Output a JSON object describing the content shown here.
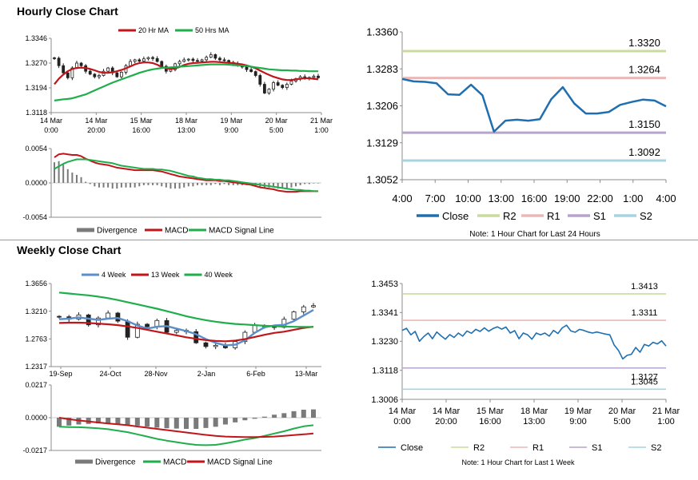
{
  "sections": {
    "hourly": {
      "title": "Hourly Close Chart"
    },
    "weekly": {
      "title": "Weekly Close Chart"
    }
  },
  "colors": {
    "ma_red": "#c0161b",
    "ma_green": "#1fae4b",
    "ma_blue": "#5b8fc9",
    "close_blue": "#1f6fb0",
    "divergence": "#7a7a7a",
    "r2": "#c9dc9c",
    "r1": "#eab8b6",
    "s1": "#b7a4cc",
    "s2": "#a6d4e0",
    "axis": "#8c8c8c",
    "grid": "#d9d9d9"
  },
  "chart_data": [
    {
      "id": "hourly_price",
      "type": "candlestick",
      "legend": [
        "20 Hr MA",
        "50 Hrs MA"
      ],
      "ylim": [
        1.3118,
        1.3346
      ],
      "yticks": [
        "1.3346",
        "1.3270",
        "1.3194",
        "1.3118"
      ],
      "ytick_values": [
        1.3346,
        1.327,
        1.3194,
        1.3118
      ],
      "xticks": [
        [
          "14 Mar",
          "0:00"
        ],
        [
          "14 Mar",
          "20:00"
        ],
        [
          "15 Mar",
          "16:00"
        ],
        [
          "18 Mar",
          "13:00"
        ],
        [
          "19 Mar",
          "9:00"
        ],
        [
          "20 Mar",
          "5:00"
        ],
        [
          "21 Mar",
          "1:00"
        ]
      ],
      "n": 60,
      "close": [
        1.3285,
        1.3262,
        1.324,
        1.3225,
        1.3255,
        1.327,
        1.3262,
        1.3245,
        1.3236,
        1.3228,
        1.3232,
        1.3245,
        1.3255,
        1.324,
        1.3228,
        1.3242,
        1.3262,
        1.3275,
        1.328,
        1.3276,
        1.3283,
        1.3287,
        1.3284,
        1.3275,
        1.326,
        1.3245,
        1.325,
        1.3268,
        1.3275,
        1.328,
        1.3282,
        1.3278,
        1.3276,
        1.328,
        1.3288,
        1.3296,
        1.3285,
        1.328,
        1.3278,
        1.3272,
        1.3268,
        1.3262,
        1.3258,
        1.325,
        1.3244,
        1.3232,
        1.3205,
        1.3178,
        1.319,
        1.321,
        1.3202,
        1.3195,
        1.3205,
        1.3215,
        1.3222,
        1.3228,
        1.3222,
        1.3226,
        1.323,
        1.3225
      ],
      "ma20": [
        1.3205,
        1.3222,
        1.3235,
        1.3245,
        1.3252,
        1.3255,
        1.3256,
        1.3255,
        1.3252,
        1.3248,
        1.3243,
        1.324,
        1.324,
        1.3242,
        1.3245,
        1.3249,
        1.3254,
        1.326,
        1.3266,
        1.327,
        1.3272,
        1.3272,
        1.327,
        1.3265,
        1.3258,
        1.3254,
        1.3252,
        1.3254,
        1.3258,
        1.3264,
        1.3268,
        1.327,
        1.3271,
        1.3272,
        1.3273,
        1.3274,
        1.3274,
        1.3273,
        1.3272,
        1.3271,
        1.327,
        1.3268,
        1.3266,
        1.3263,
        1.3259,
        1.3254,
        1.3247,
        1.324,
        1.3234,
        1.3228,
        1.3224,
        1.322,
        1.3218,
        1.3218,
        1.322,
        1.3222,
        1.3224,
        1.3223,
        1.3222,
        1.322
      ],
      "ma50": [
        1.3155,
        1.3157,
        1.3159,
        1.316,
        1.3162,
        1.3166,
        1.317,
        1.3174,
        1.318,
        1.3186,
        1.3192,
        1.3198,
        1.3204,
        1.321,
        1.3215,
        1.322,
        1.3225,
        1.323,
        1.3235,
        1.324,
        1.3244,
        1.3248,
        1.3251,
        1.3253,
        1.3255,
        1.3256,
        1.3257,
        1.3258,
        1.3259,
        1.326,
        1.3261,
        1.3262,
        1.3263,
        1.3264,
        1.3265,
        1.3266,
        1.3266,
        1.3266,
        1.3266,
        1.3265,
        1.3264,
        1.3263,
        1.3262,
        1.3261,
        1.3259,
        1.3257,
        1.3255,
        1.3253,
        1.3251,
        1.325,
        1.3249,
        1.3248,
        1.3248,
        1.3247,
        1.3247,
        1.3246,
        1.3246,
        1.3245,
        1.3245,
        1.3245
      ]
    },
    {
      "id": "hourly_macd",
      "type": "macd",
      "legend": [
        "Divergence",
        "MACD",
        "MACD Signal Line"
      ],
      "ylim": [
        -0.0054,
        0.0054
      ],
      "yticks": [
        "0.0054",
        "0.0000",
        "-0.0054"
      ],
      "ytick_values": [
        0.0054,
        0.0,
        -0.0054
      ],
      "macd": [
        0.004,
        0.0045,
        0.0046,
        0.0045,
        0.0044,
        0.0044,
        0.0042,
        0.0038,
        0.0035,
        0.0032,
        0.003,
        0.0029,
        0.0028,
        0.0026,
        0.0024,
        0.0023,
        0.0022,
        0.0021,
        0.002,
        0.002,
        0.002,
        0.002,
        0.002,
        0.0019,
        0.0018,
        0.0016,
        0.0014,
        0.0012,
        0.001,
        0.0009,
        0.0008,
        0.0007,
        0.0006,
        0.0005,
        0.0004,
        0.0004,
        0.0004,
        0.0003,
        0.0003,
        0.0002,
        0.0001,
        0.0,
        -0.0001,
        -0.0002,
        -0.0003,
        -0.0005,
        -0.0007,
        -0.0008,
        -0.0009,
        -0.001,
        -0.0012,
        -0.0013,
        -0.0014,
        -0.0014,
        -0.0014,
        -0.0013,
        -0.0013,
        -0.0013,
        -0.0013,
        -0.0013
      ],
      "signal": [
        0.0022,
        0.0026,
        0.003,
        0.0033,
        0.0035,
        0.0037,
        0.0037,
        0.0037,
        0.0036,
        0.0035,
        0.0034,
        0.0033,
        0.0032,
        0.0031,
        0.0029,
        0.0027,
        0.0026,
        0.0025,
        0.0024,
        0.0023,
        0.0022,
        0.0022,
        0.0022,
        0.0021,
        0.0021,
        0.002,
        0.0019,
        0.0017,
        0.0015,
        0.0013,
        0.0011,
        0.001,
        0.0008,
        0.0007,
        0.0006,
        0.0006,
        0.0005,
        0.0005,
        0.0004,
        0.0004,
        0.0003,
        0.0002,
        0.0001,
        0.0,
        -0.0001,
        -0.0002,
        -0.0003,
        -0.0004,
        -0.0005,
        -0.0006,
        -0.0007,
        -0.0008,
        -0.0009,
        -0.001,
        -0.0011,
        -0.0011,
        -0.0012,
        -0.0012,
        -0.0013,
        -0.0013
      ]
    },
    {
      "id": "hourly_close_24h",
      "type": "line",
      "legend": [
        "Close",
        "R2",
        "R1",
        "S1",
        "S2"
      ],
      "note": "Note: 1 Hour Chart for Last 24 Hours",
      "ylim": [
        1.3052,
        1.336
      ],
      "yticks": [
        "1.3360",
        "1.3283",
        "1.3206",
        "1.3129",
        "1.3052"
      ],
      "ytick_values": [
        1.336,
        1.3283,
        1.3206,
        1.3129,
        1.3052
      ],
      "xticks": [
        "4:00",
        "7:00",
        "10:00",
        "13:00",
        "16:00",
        "19:00",
        "22:00",
        "1:00",
        "4:00"
      ],
      "close": [
        1.3262,
        1.3257,
        1.3256,
        1.3253,
        1.323,
        1.3229,
        1.325,
        1.3228,
        1.3152,
        1.3175,
        1.3177,
        1.3175,
        1.3178,
        1.322,
        1.3245,
        1.3211,
        1.319,
        1.319,
        1.3193,
        1.3208,
        1.3214,
        1.3219,
        1.3217,
        1.3205
      ],
      "levels": [
        {
          "name": "R2",
          "value": 1.332,
          "label": "1.3320"
        },
        {
          "name": "R1",
          "value": 1.3264,
          "label": "1.3264"
        },
        {
          "name": "S1",
          "value": 1.315,
          "label": "1.3150"
        },
        {
          "name": "S2",
          "value": 1.3092,
          "label": "1.3092"
        }
      ]
    },
    {
      "id": "weekly_price",
      "type": "candlestick",
      "legend": [
        "4 Week",
        "13 Week",
        "40 Week"
      ],
      "ylim": [
        1.2317,
        1.3656
      ],
      "yticks": [
        "1.3656",
        "1.3210",
        "1.2763",
        "1.2317"
      ],
      "ytick_values": [
        1.3656,
        1.321,
        1.2763,
        1.2317
      ],
      "xticks": [
        "19-Sep",
        "24-Oct",
        "28-Nov",
        "2-Jan",
        "6-Feb",
        "13-Mar"
      ],
      "n": 27,
      "close": [
        1.312,
        1.308,
        1.315,
        1.299,
        1.31,
        1.318,
        1.305,
        1.279,
        1.3,
        1.296,
        1.306,
        1.287,
        1.29,
        1.288,
        1.27,
        1.264,
        1.266,
        1.262,
        1.272,
        1.287,
        1.298,
        1.296,
        1.295,
        1.308,
        1.32,
        1.328,
        1.33
      ],
      "ma4": [
        1.308,
        1.309,
        1.311,
        1.309,
        1.307,
        1.309,
        1.31,
        1.305,
        1.298,
        1.293,
        1.296,
        1.297,
        1.293,
        1.289,
        1.284,
        1.276,
        1.27,
        1.266,
        1.267,
        1.274,
        1.286,
        1.295,
        1.298,
        1.299,
        1.305,
        1.314,
        1.323
      ],
      "ma13": [
        1.302,
        1.3025,
        1.3025,
        1.302,
        1.301,
        1.3,
        1.2985,
        1.2965,
        1.294,
        1.291,
        1.288,
        1.285,
        1.282,
        1.279,
        1.2765,
        1.2745,
        1.273,
        1.2725,
        1.2735,
        1.276,
        1.2795,
        1.283,
        1.286,
        1.288,
        1.291,
        1.294,
        1.296
      ],
      "ma40": [
        1.351,
        1.3495,
        1.348,
        1.3465,
        1.3445,
        1.342,
        1.339,
        1.3355,
        1.332,
        1.3285,
        1.325,
        1.321,
        1.317,
        1.313,
        1.3095,
        1.3065,
        1.304,
        1.302,
        1.3005,
        1.2995,
        1.2985,
        1.2975,
        1.2968,
        1.2962,
        1.2958,
        1.2955,
        1.2955
      ]
    },
    {
      "id": "weekly_macd",
      "type": "macd",
      "legend": [
        "Divergence",
        "MACD",
        "MACD Signal Line"
      ],
      "ylim": [
        -0.0217,
        0.0217
      ],
      "yticks": [
        "0.0217",
        "0.0000",
        "-0.0217"
      ],
      "ytick_values": [
        0.0217,
        0.0,
        -0.0217
      ],
      "macd": [
        -0.006,
        -0.0062,
        -0.0063,
        -0.0066,
        -0.007,
        -0.0076,
        -0.0086,
        -0.0096,
        -0.011,
        -0.0125,
        -0.014,
        -0.0152,
        -0.0162,
        -0.0172,
        -0.018,
        -0.0182,
        -0.018,
        -0.017,
        -0.0158,
        -0.0145,
        -0.0135,
        -0.012,
        -0.0105,
        -0.009,
        -0.0072,
        -0.0057,
        -0.005
      ],
      "signal": [
        0.0,
        -0.001,
        -0.0018,
        -0.0025,
        -0.0032,
        -0.0038,
        -0.0044,
        -0.005,
        -0.0058,
        -0.0066,
        -0.0074,
        -0.0082,
        -0.009,
        -0.0098,
        -0.0106,
        -0.0114,
        -0.012,
        -0.0125,
        -0.0127,
        -0.0128,
        -0.0128,
        -0.0127,
        -0.0125,
        -0.012,
        -0.0115,
        -0.011,
        -0.0105
      ]
    },
    {
      "id": "weekly_close",
      "type": "line",
      "legend": [
        "Close",
        "R2",
        "R1",
        "S1",
        "S2"
      ],
      "note": "Note: 1 Hour Chart for Last 1 Week",
      "ylim": [
        1.3006,
        1.3453
      ],
      "yticks": [
        "1.3453",
        "1.3341",
        "1.3230",
        "1.3118",
        "1.3006"
      ],
      "ytick_values": [
        1.3453,
        1.3341,
        1.323,
        1.3118,
        1.3006
      ],
      "xticks": [
        [
          "14 Mar",
          "0:00"
        ],
        [
          "14 Mar",
          "20:00"
        ],
        [
          "15 Mar",
          "16:00"
        ],
        [
          "18 Mar",
          "13:00"
        ],
        [
          "19 Mar",
          "9:00"
        ],
        [
          "20 Mar",
          "5:00"
        ],
        [
          "21 Mar",
          "1:00"
        ]
      ],
      "close": [
        1.3272,
        1.328,
        1.3255,
        1.3268,
        1.323,
        1.3248,
        1.3262,
        1.324,
        1.3266,
        1.3251,
        1.3238,
        1.3256,
        1.3245,
        1.3262,
        1.325,
        1.327,
        1.3261,
        1.3276,
        1.3268,
        1.3282,
        1.3269,
        1.3279,
        1.3286,
        1.3277,
        1.3285,
        1.3262,
        1.3271,
        1.324,
        1.3262,
        1.3255,
        1.3238,
        1.3262,
        1.3255,
        1.3262,
        1.325,
        1.3272,
        1.326,
        1.3282,
        1.3292,
        1.327,
        1.3265,
        1.3276,
        1.3272,
        1.3266,
        1.3262,
        1.3266,
        1.3262,
        1.3258,
        1.3255,
        1.3216,
        1.3195,
        1.3162,
        1.3176,
        1.318,
        1.3206,
        1.3188,
        1.3218,
        1.3212,
        1.3226,
        1.322,
        1.3232,
        1.3212
      ],
      "levels": [
        {
          "name": "R2",
          "value": 1.3413,
          "label": "1.3413"
        },
        {
          "name": "R1",
          "value": 1.3311,
          "label": "1.3311"
        },
        {
          "name": "S1",
          "value": 1.3127,
          "label": "1.3127"
        },
        {
          "name": "S2",
          "value": 1.3045,
          "label": "1.3045"
        }
      ]
    }
  ]
}
